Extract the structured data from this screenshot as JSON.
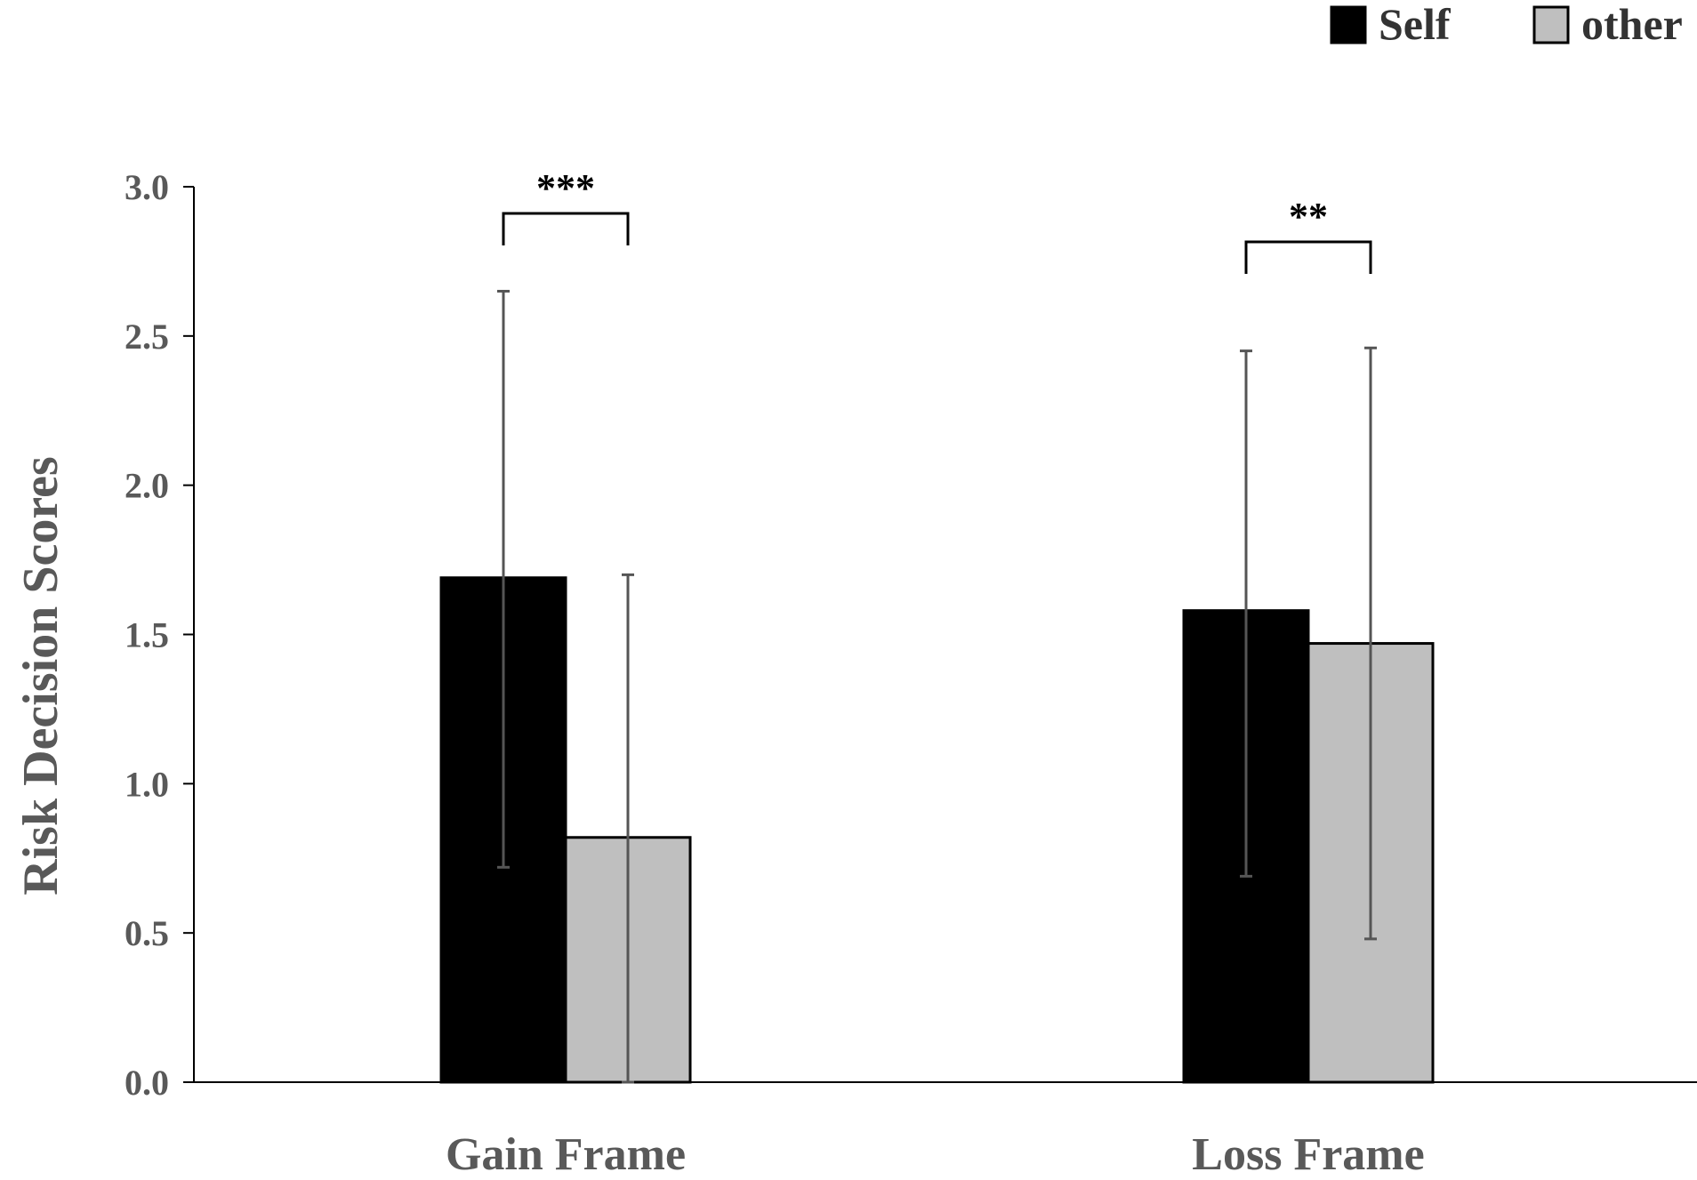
{
  "chart_data": {
    "type": "bar",
    "categories": [
      "Gain Frame",
      "Loss Frame"
    ],
    "series": [
      {
        "name": "Self",
        "color": "#000000",
        "values": [
          1.69,
          1.58
        ],
        "error_low": [
          0.72,
          0.69
        ],
        "error_high": [
          2.65,
          2.45
        ]
      },
      {
        "name": "other",
        "color": "#bfbfbf",
        "values": [
          0.82,
          1.47
        ],
        "error_low": [
          0.0,
          0.48
        ],
        "error_high": [
          1.7,
          2.46
        ]
      }
    ],
    "significance": [
      "***",
      "**"
    ],
    "ylabel": "Risk Decision Scores",
    "xlabel": "",
    "title": "",
    "ylim": [
      0,
      3.0
    ],
    "yticks": [
      "0.0",
      "0.5",
      "1.0",
      "1.5",
      "2.0",
      "2.5",
      "3.0"
    ],
    "legend_position": "top-right",
    "grid": false
  }
}
